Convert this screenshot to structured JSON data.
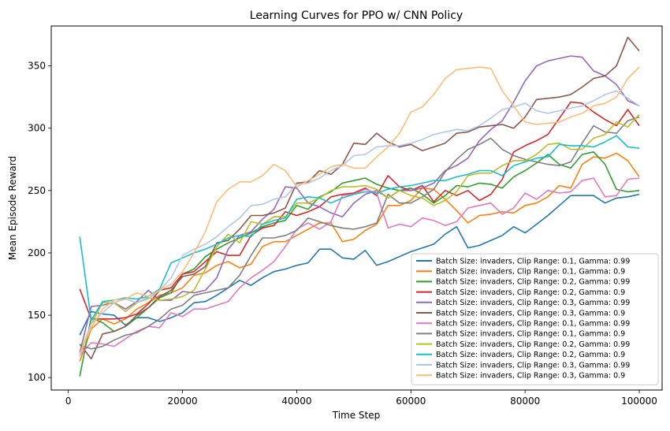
{
  "chart_data": {
    "type": "line",
    "title": "Learning Curves for PPO w/ CNN Policy",
    "xlabel": "Time Step",
    "ylabel": "Mean Episode Reward",
    "xlim": [
      -3000,
      104000
    ],
    "ylim": [
      90,
      382
    ],
    "xticks": [
      0,
      20000,
      40000,
      60000,
      80000,
      100000
    ],
    "yticks": [
      100,
      150,
      200,
      250,
      300,
      350
    ],
    "grid": false,
    "legend_position": "bottom-right",
    "x": [
      2000,
      4000,
      6000,
      8000,
      10000,
      12000,
      14000,
      16000,
      18000,
      20000,
      22000,
      24000,
      26000,
      28000,
      30000,
      32000,
      34000,
      36000,
      38000,
      40000,
      42000,
      44000,
      46000,
      48000,
      50000,
      52000,
      54000,
      56000,
      58000,
      60000,
      62000,
      64000,
      66000,
      68000,
      70000,
      72000,
      74000,
      76000,
      78000,
      80000,
      82000,
      84000,
      86000,
      88000,
      90000,
      92000,
      94000,
      96000,
      98000,
      100000
    ],
    "series": [
      {
        "name": "Batch Size: invaders, Clip Range: 0.1, Gamma: 0.99",
        "color": "#1f77b4",
        "values": [
          134,
          153,
          151,
          150,
          142,
          148,
          148,
          145,
          148,
          152,
          160,
          161,
          166,
          172,
          178,
          174,
          180,
          185,
          187,
          190,
          192,
          203,
          203,
          196,
          195,
          202,
          190,
          193,
          197,
          201,
          204,
          207,
          215,
          221,
          204,
          206,
          210,
          214,
          221,
          216,
          223,
          230,
          238,
          246,
          246,
          246,
          240,
          244,
          245,
          247
        ]
      },
      {
        "name": "Batch Size: invaders, Clip Range: 0.1, Gamma: 0.9",
        "color": "#ff7f0e",
        "values": [
          113,
          139,
          147,
          143,
          147,
          155,
          160,
          166,
          168,
          172,
          182,
          184,
          190,
          193,
          188,
          191,
          205,
          209,
          209,
          214,
          219,
          224,
          224,
          209,
          211,
          218,
          223,
          238,
          238,
          242,
          252,
          251,
          243,
          234,
          224,
          230,
          231,
          233,
          232,
          238,
          240,
          245,
          254,
          252,
          271,
          277,
          276,
          280,
          274,
          261
        ]
      },
      {
        "name": "Batch Size: invaders, Clip Range: 0.2, Gamma: 0.99",
        "color": "#2ca02c",
        "values": [
          101,
          148,
          144,
          137,
          141,
          148,
          156,
          164,
          168,
          183,
          187,
          197,
          203,
          208,
          212,
          216,
          221,
          224,
          226,
          238,
          235,
          245,
          249,
          256,
          258,
          260,
          255,
          252,
          250,
          252,
          247,
          240,
          246,
          254,
          253,
          256,
          255,
          252,
          261,
          266,
          272,
          279,
          271,
          268,
          279,
          281,
          271,
          251,
          249,
          250
        ]
      },
      {
        "name": "Batch Size: invaders, Clip Range: 0.2, Gamma: 0.9",
        "color": "#d62728",
        "values": [
          171,
          147,
          147,
          147,
          148,
          151,
          159,
          170,
          172,
          183,
          185,
          193,
          201,
          198,
          198,
          214,
          220,
          222,
          233,
          230,
          233,
          237,
          245,
          247,
          248,
          252,
          246,
          262,
          253,
          250,
          254,
          241,
          250,
          246,
          250,
          242,
          247,
          259,
          281,
          286,
          290,
          295,
          308,
          321,
          320,
          313,
          307,
          302,
          315,
          302
        ]
      },
      {
        "name": "Batch Size: invaders, Clip Range: 0.3, Gamma: 0.99",
        "color": "#9467bd",
        "values": [
          120,
          157,
          158,
          160,
          155,
          161,
          170,
          162,
          162,
          169,
          168,
          170,
          180,
          203,
          214,
          217,
          227,
          235,
          253,
          252,
          240,
          237,
          232,
          229,
          240,
          247,
          250,
          244,
          250,
          250,
          252,
          256,
          266,
          270,
          276,
          290,
          299,
          306,
          321,
          338,
          350,
          354,
          356,
          358,
          357,
          346,
          342,
          335,
          322,
          318
        ]
      },
      {
        "name": "Batch Size: invaders, Clip Range: 0.3, Gamma: 0.9",
        "color": "#8c564b",
        "values": [
          127,
          115,
          135,
          137,
          141,
          150,
          156,
          165,
          170,
          181,
          183,
          189,
          208,
          210,
          219,
          230,
          230,
          232,
          236,
          256,
          257,
          266,
          263,
          271,
          288,
          287,
          296,
          289,
          285,
          287,
          282,
          285,
          288,
          296,
          297,
          301,
          302,
          303,
          300,
          309,
          323,
          324,
          325,
          327,
          333,
          340,
          342,
          350,
          373,
          362
        ]
      },
      {
        "name": "Batch Size: invaders, Clip Range: 0.1, Gamma: 0.99",
        "color": "#e377c2",
        "values": [
          118,
          128,
          127,
          125,
          131,
          137,
          141,
          140,
          152,
          149,
          155,
          155,
          158,
          161,
          172,
          180,
          186,
          193,
          205,
          219,
          224,
          219,
          225,
          246,
          247,
          251,
          248,
          220,
          223,
          221,
          228,
          226,
          222,
          225,
          236,
          238,
          240,
          231,
          236,
          248,
          243,
          250,
          248,
          249,
          258,
          260,
          245,
          246,
          259,
          260
        ]
      },
      {
        "name": "Batch Size: invaders, Clip Range: 0.1, Gamma: 0.9",
        "color": "#7f7f7f",
        "values": [
          126,
          123,
          125,
          130,
          134,
          136,
          141,
          147,
          155,
          158,
          166,
          168,
          170,
          172,
          182,
          198,
          212,
          212,
          214,
          218,
          228,
          225,
          222,
          220,
          219,
          221,
          224,
          247,
          240,
          240,
          245,
          251,
          265,
          275,
          283,
          287,
          292,
          283,
          278,
          275,
          273,
          271,
          270,
          273,
          288,
          302,
          297,
          296,
          306,
          309
        ]
      },
      {
        "name": "Batch Size: invaders, Clip Range: 0.2, Gamma: 0.99",
        "color": "#bcbd22",
        "values": [
          119,
          143,
          160,
          160,
          153,
          160,
          164,
          162,
          163,
          165,
          170,
          187,
          205,
          215,
          208,
          225,
          223,
          229,
          229,
          240,
          240,
          244,
          250,
          253,
          253,
          254,
          251,
          244,
          250,
          246,
          244,
          238,
          242,
          249,
          262,
          264,
          264,
          270,
          274,
          274,
          279,
          287,
          288,
          283,
          283,
          292,
          295,
          305,
          301,
          311
        ]
      },
      {
        "name": "Batch Size: invaders, Clip Range: 0.2, Gamma: 0.9",
        "color": "#17becf",
        "values": [
          213,
          146,
          161,
          162,
          164,
          163,
          165,
          171,
          192,
          196,
          200,
          203,
          207,
          212,
          214,
          213,
          223,
          226,
          228,
          243,
          245,
          244,
          240,
          244,
          247,
          249,
          248,
          251,
          253,
          254,
          256,
          258,
          258,
          261,
          263,
          266,
          266,
          262,
          270,
          273,
          276,
          277,
          287,
          286,
          286,
          285,
          289,
          294,
          285,
          284
        ]
      },
      {
        "name": "Batch Size: invaders, Clip Range: 0.3, Gamma: 0.99",
        "color": "#aec7e8",
        "values": [
          117,
          143,
          152,
          160,
          163,
          160,
          163,
          170,
          180,
          198,
          203,
          207,
          213,
          221,
          228,
          238,
          239,
          243,
          245,
          255,
          256,
          260,
          266,
          270,
          278,
          279,
          285,
          286,
          286,
          288,
          291,
          295,
          297,
          299,
          298,
          302,
          308,
          315,
          317,
          320,
          314,
          312,
          314,
          316,
          318,
          322,
          327,
          330,
          324,
          318
        ]
      },
      {
        "name": "Batch Size: invaders, Clip Range: 0.3, Gamma: 0.9",
        "color": "#ffbb78",
        "values": [
          119,
          140,
          155,
          162,
          163,
          168,
          165,
          170,
          175,
          185,
          200,
          217,
          241,
          251,
          257,
          257,
          262,
          271,
          266,
          253,
          258,
          263,
          269,
          271,
          268,
          268,
          277,
          285,
          296,
          313,
          317,
          327,
          340,
          347,
          348,
          349,
          348,
          330,
          318,
          305,
          303,
          304,
          305,
          309,
          312,
          318,
          320,
          325,
          340,
          349
        ]
      }
    ]
  }
}
